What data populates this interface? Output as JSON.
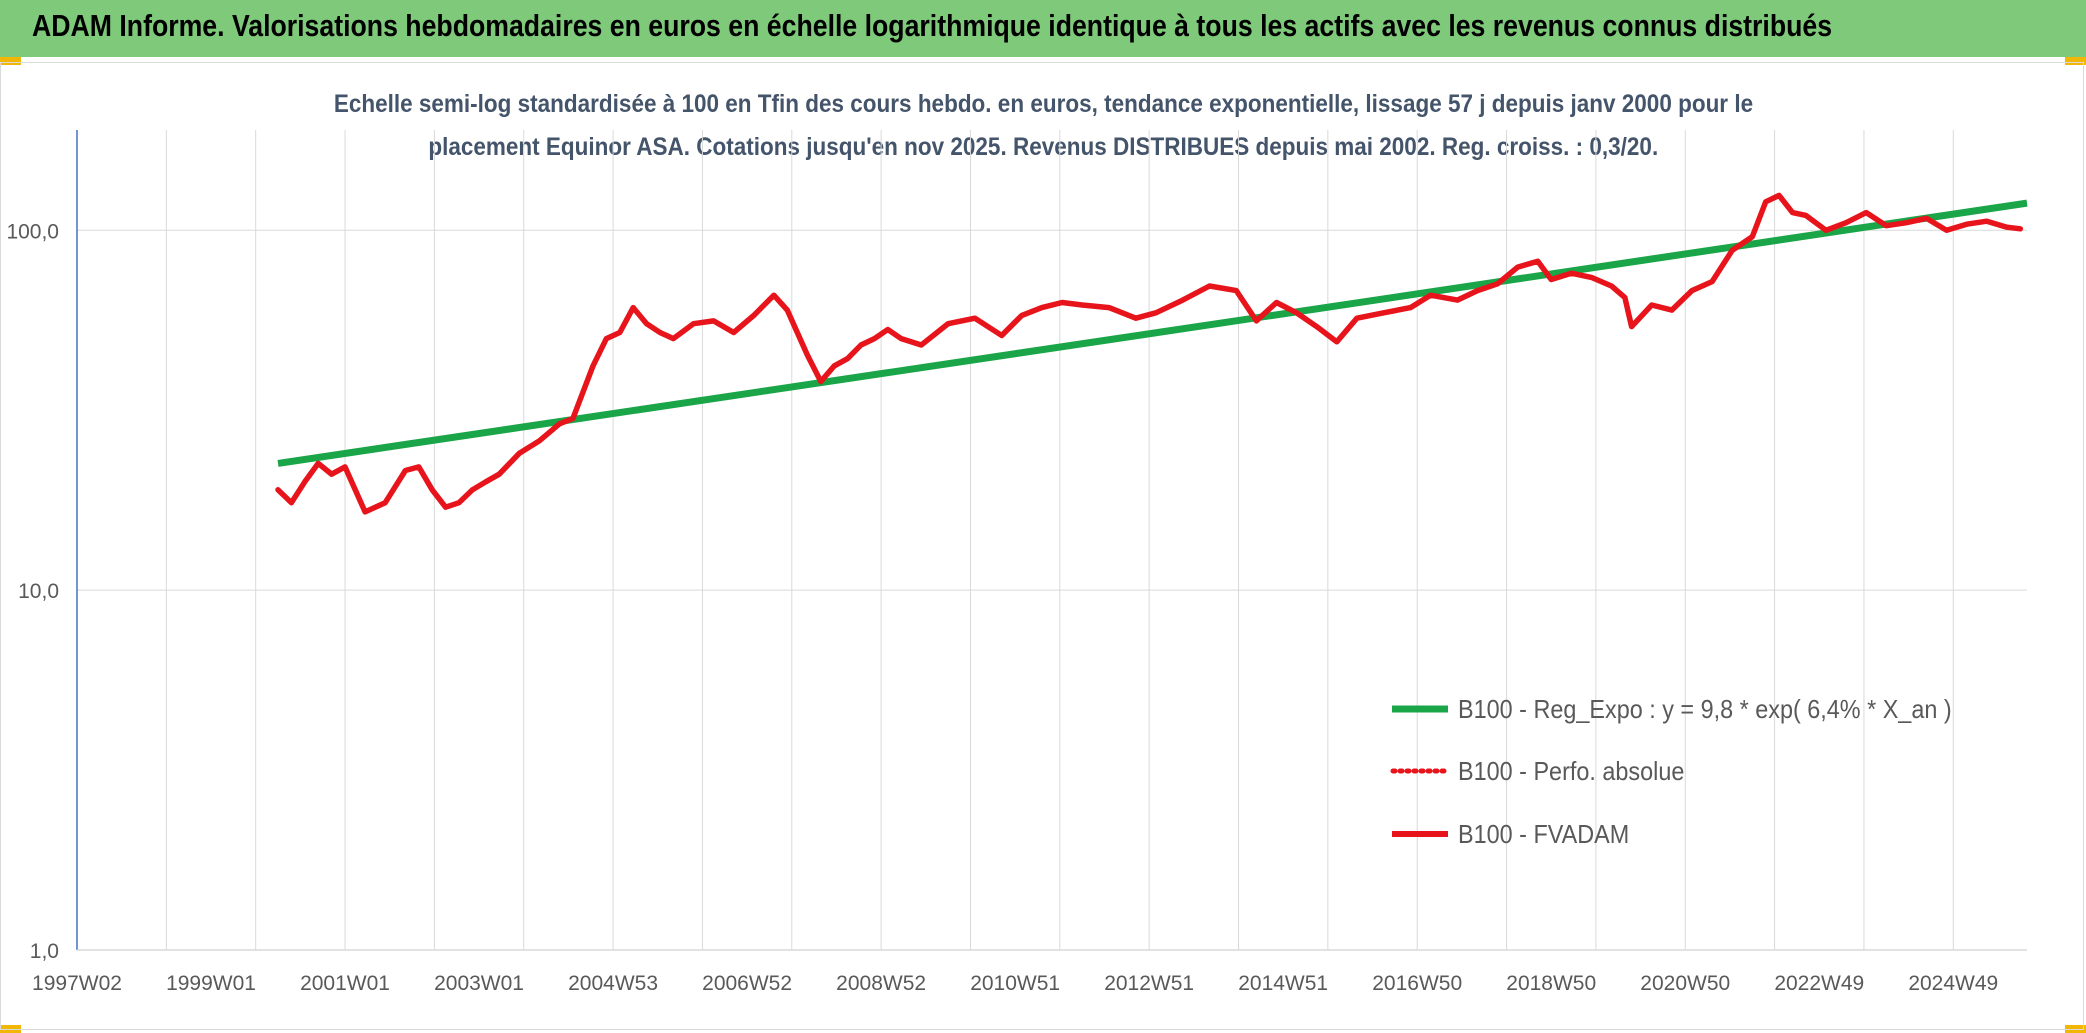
{
  "header": {
    "title": "ADAM Informe. Valorisations hebdomadaires en euros en échelle logarithmique identique à tous les actifs avec les revenus connus distribués",
    "background": "#7ec97a"
  },
  "chart_data": {
    "type": "line",
    "title_lines": [
      "Echelle semi-log standardisée à 100 en Tfin des cours hebdo. en euros, tendance exponentielle, lissage 57 j depuis janv 2000 pour le",
      "placement Equinor ASA. Cotations jusqu'en nov 2025. Revenus DISTRIBUES depuis mai 2002. Reg. croiss. : 0,3/20."
    ],
    "y_scale": "log",
    "ylim": [
      1,
      190
    ],
    "y_tick_values": [
      1,
      10,
      100
    ],
    "y_tick_labels": [
      "1,0",
      "10,0",
      "100,0"
    ],
    "xlim": [
      1997.0,
      2026.1
    ],
    "x_tick_values": [
      1997.0,
      1999.0,
      2001.0,
      2003.0,
      2005.0,
      2007.0,
      2009.0,
      2011.0,
      2013.0,
      2015.0,
      2017.0,
      2019.0,
      2021.0,
      2023.0,
      2025.0
    ],
    "x_tick_labels": [
      "1997W02",
      "1999W01",
      "2001W01",
      "2003W01",
      "2004W53",
      "2006W52",
      "2008W52",
      "2010W51",
      "2012W51",
      "2014W51",
      "2016W50",
      "2018W50",
      "2020W50",
      "2022W49",
      "2024W49"
    ],
    "legend_position": "lower-right",
    "series": [
      {
        "name": "B100 - Reg_Expo : y = 9,8 * exp( 6,4% *  X_an )",
        "color": "#1aa548",
        "style": "solid",
        "x": [
          2000.0,
          2026.1
        ],
        "y": [
          22.5,
          119
        ]
      },
      {
        "name": "B100 - Perfo. absolue",
        "color": "#e8141c",
        "style": "dotted",
        "x": [],
        "y": []
      },
      {
        "name": "B100 - FVADAM",
        "color": "#e8141c",
        "style": "solid",
        "x": [
          2000.0,
          2000.2,
          2000.4,
          2000.6,
          2000.8,
          2001.0,
          2001.3,
          2001.6,
          2001.9,
          2002.1,
          2002.3,
          2002.5,
          2002.7,
          2002.9,
          2003.1,
          2003.3,
          2003.6,
          2003.9,
          2004.2,
          2004.4,
          2004.7,
          2004.9,
          2005.1,
          2005.3,
          2005.5,
          2005.7,
          2005.9,
          2006.2,
          2006.5,
          2006.8,
          2007.1,
          2007.4,
          2007.6,
          2007.9,
          2008.1,
          2008.3,
          2008.5,
          2008.7,
          2008.9,
          2009.1,
          2009.3,
          2009.6,
          2010.0,
          2010.4,
          2010.8,
          2011.1,
          2011.4,
          2011.7,
          2012.0,
          2012.4,
          2012.8,
          2013.1,
          2013.5,
          2013.9,
          2014.3,
          2014.6,
          2014.9,
          2015.2,
          2015.5,
          2015.8,
          2016.1,
          2016.5,
          2016.9,
          2017.2,
          2017.6,
          2017.9,
          2018.2,
          2018.5,
          2018.8,
          2019.0,
          2019.3,
          2019.6,
          2019.9,
          2020.1,
          2020.2,
          2020.5,
          2020.8,
          2021.1,
          2021.4,
          2021.7,
          2022.0,
          2022.2,
          2022.4,
          2022.6,
          2022.8,
          2023.1,
          2023.4,
          2023.7,
          2024.0,
          2024.3,
          2024.6,
          2024.9,
          2025.2,
          2025.5,
          2025.8,
          2026.0
        ],
        "y": [
          19,
          17.5,
          20,
          22.5,
          21,
          22,
          16.5,
          17.5,
          21.5,
          22,
          19,
          17,
          17.5,
          19,
          20,
          21,
          24,
          26,
          29,
          30,
          42,
          50,
          52,
          61,
          55,
          52,
          50,
          55,
          56,
          52,
          58,
          66,
          60,
          45,
          38,
          42,
          44,
          48,
          50,
          53,
          50,
          48,
          55,
          57,
          51,
          58,
          61,
          63,
          62,
          61,
          57,
          59,
          64,
          70,
          68,
          56,
          63,
          59,
          54,
          49,
          57,
          59,
          61,
          66,
          64,
          68,
          71,
          79,
          82,
          73,
          76,
          74,
          70,
          65,
          54,
          62,
          60,
          68,
          72,
          88,
          96,
          120,
          125,
          112,
          110,
          100,
          105,
          112,
          103,
          105,
          108,
          100,
          104,
          106,
          102,
          101
        ]
      }
    ]
  }
}
